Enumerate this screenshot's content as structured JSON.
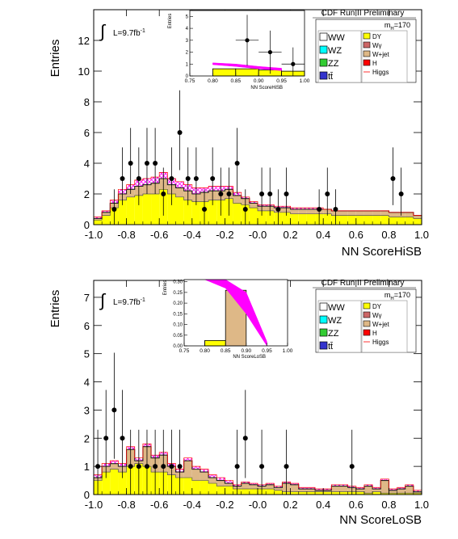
{
  "panels": [
    {
      "id": "hisb",
      "experiment": "CDF Run II Preliminary",
      "lumi": "L=9.7fb",
      "lumi_sup": "-1",
      "mass": "m",
      "mass_sub": "H",
      "mass_val": "=170",
      "legend_left": [
        "WW",
        "WZ",
        "ZZ",
        "tt̄"
      ],
      "legend_right": [
        "DY",
        "Wγ",
        "W+jet",
        "H",
        "Higgs"
      ],
      "inset_ylabel": "Entries",
      "inset_xlabel": "NN ScoreHiSB",
      "ylabel": "Entries",
      "xlabel": "NN ScoreHiSB"
    },
    {
      "id": "losb",
      "experiment": "CDF Run II Preliminary",
      "lumi": "L=9.7fb",
      "lumi_sup": "-1",
      "mass": "m",
      "mass_sub": "H",
      "mass_val": "=170",
      "legend_left": [
        "WW",
        "WZ",
        "ZZ",
        "tt̄"
      ],
      "legend_right": [
        "DY",
        "Wγ",
        "W+jet",
        "H",
        "Higgs"
      ],
      "inset_ylabel": "Entries",
      "inset_xlabel": "NN ScoreLoSB",
      "ylabel": "Entries",
      "xlabel": "NN ScoreLoSB"
    }
  ],
  "colors": {
    "dy": "#ffff00",
    "wjet": "#deb887",
    "higgs_band": "#ff00ff",
    "ww": "#ffffff",
    "wz": "#00ffff",
    "zz": "#33cc33",
    "tt": "#3333cc",
    "wg": "#cc6666",
    "h": "#ff0000"
  },
  "chart_data": [
    {
      "type": "bar",
      "title": "NN ScoreHiSB",
      "xlabel": "NN ScoreHiSB",
      "ylabel": "Entries",
      "xlim": [
        -1.0,
        1.0
      ],
      "ylim": [
        0,
        14
      ],
      "xticks": [
        -1.0,
        -0.8,
        -0.6,
        -0.4,
        -0.2,
        -0.0,
        0.2,
        0.4,
        0.6,
        0.8,
        1.0
      ],
      "yticks": [
        0,
        2,
        4,
        6,
        8,
        10,
        12
      ],
      "bin_edges_start": -1.0,
      "bin_width": 0.05,
      "dy_values": [
        0.3,
        0.6,
        1.1,
        1.6,
        1.8,
        1.9,
        2.0,
        2.0,
        2.3,
        2.0,
        1.8,
        1.6,
        1.5,
        1.5,
        1.6,
        1.6,
        1.7,
        1.4,
        1.3,
        1.1,
        0.9,
        0.9,
        0.8,
        0.8,
        0.7,
        0.7,
        0.7,
        0.7,
        0.7,
        0.6,
        0.6,
        0.6,
        0.6,
        0.6,
        0.6,
        0.6,
        0.5,
        0.5,
        0.5,
        0.4
      ],
      "total_values": [
        0.4,
        0.8,
        1.4,
        2.0,
        2.3,
        2.5,
        2.6,
        2.7,
        3.0,
        2.6,
        2.4,
        2.2,
        2.0,
        2.1,
        2.2,
        2.2,
        2.3,
        1.9,
        1.7,
        1.4,
        1.2,
        1.2,
        1.1,
        1.1,
        1.0,
        1.0,
        1.0,
        1.0,
        1.0,
        0.9,
        0.9,
        0.9,
        0.9,
        0.9,
        0.9,
        0.9,
        0.8,
        0.8,
        0.8,
        0.6
      ],
      "higgs_values": [
        0.5,
        0.9,
        1.6,
        2.3,
        2.6,
        2.9,
        3.0,
        3.1,
        3.4,
        3.0,
        2.8,
        2.6,
        2.4,
        2.4,
        2.5,
        2.5,
        2.5,
        2.1,
        1.8,
        1.5,
        1.3,
        1.3,
        1.2,
        1.2,
        1.1,
        1.1,
        1.1,
        1.1,
        1.0,
        0.9,
        0.9,
        0.9,
        0.9,
        0.9,
        0.9,
        0.9,
        0.8,
        0.8,
        0.8,
        0.6
      ],
      "data_points": [
        {
          "x": -0.875,
          "y": 1
        },
        {
          "x": -0.825,
          "y": 3
        },
        {
          "x": -0.775,
          "y": 4
        },
        {
          "x": -0.725,
          "y": 3
        },
        {
          "x": -0.675,
          "y": 4
        },
        {
          "x": -0.625,
          "y": 4
        },
        {
          "x": -0.575,
          "y": 2
        },
        {
          "x": -0.525,
          "y": 3
        },
        {
          "x": -0.475,
          "y": 6
        },
        {
          "x": -0.425,
          "y": 3
        },
        {
          "x": -0.375,
          "y": 3
        },
        {
          "x": -0.325,
          "y": 1
        },
        {
          "x": -0.275,
          "y": 3
        },
        {
          "x": -0.225,
          "y": 2
        },
        {
          "x": -0.175,
          "y": 2
        },
        {
          "x": -0.125,
          "y": 4
        },
        {
          "x": -0.075,
          "y": 1
        },
        {
          "x": 0.025,
          "y": 2
        },
        {
          "x": 0.075,
          "y": 2
        },
        {
          "x": 0.125,
          "y": 1
        },
        {
          "x": 0.175,
          "y": 2
        },
        {
          "x": 0.375,
          "y": 1
        },
        {
          "x": 0.425,
          "y": 2
        },
        {
          "x": 0.475,
          "y": 1
        },
        {
          "x": 0.825,
          "y": 3
        },
        {
          "x": 0.875,
          "y": 2
        }
      ],
      "inset": {
        "xlim": [
          0.75,
          1.0
        ],
        "ylim": [
          0,
          5.5
        ],
        "xticks": [
          0.75,
          0.8,
          0.85,
          0.9,
          0.95,
          1.0
        ],
        "yticks": [
          0,
          1,
          2,
          3,
          4,
          5
        ],
        "bin_edges_start": 0.75,
        "bin_width": 0.05,
        "dy_values": [
          0,
          0.6,
          0.6,
          0.5,
          0.4
        ],
        "higgs_band_low": [
          0.95,
          0.8,
          0.6,
          0.45
        ],
        "higgs_band_high": [
          1.1,
          1.0,
          0.8,
          0.65
        ],
        "data_points": [
          {
            "x": 0.875,
            "y": 3
          },
          {
            "x": 0.925,
            "y": 2
          },
          {
            "x": 0.975,
            "y": 1
          }
        ]
      }
    },
    {
      "type": "bar",
      "title": "NN ScoreLoSB",
      "xlabel": "NN ScoreLoSB",
      "ylabel": "Entries",
      "xlim": [
        -1.0,
        1.0
      ],
      "ylim": [
        0,
        7.6
      ],
      "xticks": [
        -1.0,
        -0.8,
        -0.6,
        -0.4,
        -0.2,
        -0.0,
        0.2,
        0.4,
        0.6,
        0.8,
        1.0
      ],
      "yticks": [
        0,
        1,
        2,
        3,
        4,
        5,
        6,
        7
      ],
      "bin_edges_start": -1.0,
      "bin_width": 0.05,
      "dy_values": [
        0.5,
        0.8,
        0.9,
        0.8,
        1.0,
        1.1,
        1.0,
        0.8,
        0.8,
        0.7,
        0.6,
        0.6,
        0.5,
        0.5,
        0.4,
        0.3,
        0.3,
        0.2,
        0.2,
        0.2,
        0.2,
        0.2,
        0.15,
        0.1,
        0.1,
        0.1,
        0.1,
        0.1,
        0.1,
        0.1,
        0.1,
        0.1,
        0.1,
        0.05,
        0.1,
        0.05,
        0.05,
        0.05,
        0.05,
        0.05
      ],
      "total_values": [
        0.6,
        1.0,
        1.1,
        1.0,
        1.6,
        1.2,
        1.7,
        1.3,
        1.4,
        1.0,
        0.8,
        1.2,
        0.9,
        0.8,
        0.6,
        0.5,
        0.4,
        0.3,
        0.4,
        0.35,
        0.3,
        0.35,
        0.25,
        0.4,
        0.35,
        0.2,
        0.2,
        0.15,
        0.15,
        0.3,
        0.3,
        0.25,
        0.2,
        0.3,
        0.2,
        0.5,
        0.15,
        0.2,
        0.3,
        0.1
      ],
      "higgs_values": [
        0.7,
        1.1,
        1.2,
        1.1,
        1.7,
        1.3,
        1.8,
        1.4,
        1.5,
        1.1,
        0.9,
        1.3,
        1.0,
        0.9,
        0.7,
        0.6,
        0.5,
        0.35,
        0.45,
        0.4,
        0.35,
        0.4,
        0.3,
        0.45,
        0.4,
        0.25,
        0.25,
        0.2,
        0.2,
        0.35,
        0.35,
        0.3,
        0.25,
        0.35,
        0.25,
        0.55,
        0.2,
        0.25,
        0.35,
        0.15
      ],
      "data_points": [
        {
          "x": -0.975,
          "y": 1
        },
        {
          "x": -0.925,
          "y": 2
        },
        {
          "x": -0.875,
          "y": 3
        },
        {
          "x": -0.825,
          "y": 2
        },
        {
          "x": -0.775,
          "y": 1
        },
        {
          "x": -0.725,
          "y": 1
        },
        {
          "x": -0.675,
          "y": 1
        },
        {
          "x": -0.625,
          "y": 1
        },
        {
          "x": -0.575,
          "y": 1
        },
        {
          "x": -0.525,
          "y": 1
        },
        {
          "x": -0.475,
          "y": 1
        },
        {
          "x": -0.125,
          "y": 1
        },
        {
          "x": -0.075,
          "y": 2
        },
        {
          "x": 0.025,
          "y": 1
        },
        {
          "x": 0.175,
          "y": 1
        },
        {
          "x": 0.575,
          "y": 1
        }
      ],
      "inset": {
        "xlim": [
          0.75,
          1.0
        ],
        "ylim": [
          0,
          0.31
        ],
        "xticks": [
          0.75,
          0.8,
          0.85,
          0.9,
          0.95,
          1.0
        ],
        "yticks": [
          0,
          0.05,
          0.1,
          0.15,
          0.2,
          0.25,
          0.3
        ],
        "bin_edges_start": 0.75,
        "bin_width": 0.05,
        "dy_values": [
          0,
          0.025,
          0.0,
          0.0,
          0.0
        ],
        "wjet_values": [
          0,
          0.025,
          0.26,
          0.0,
          0.0
        ],
        "higgs_band_low": [
          0.31,
          0.27,
          0.15,
          0.0
        ],
        "higgs_band_high": [
          0.31,
          0.31,
          0.25,
          0.02
        ],
        "data_points": []
      }
    }
  ]
}
